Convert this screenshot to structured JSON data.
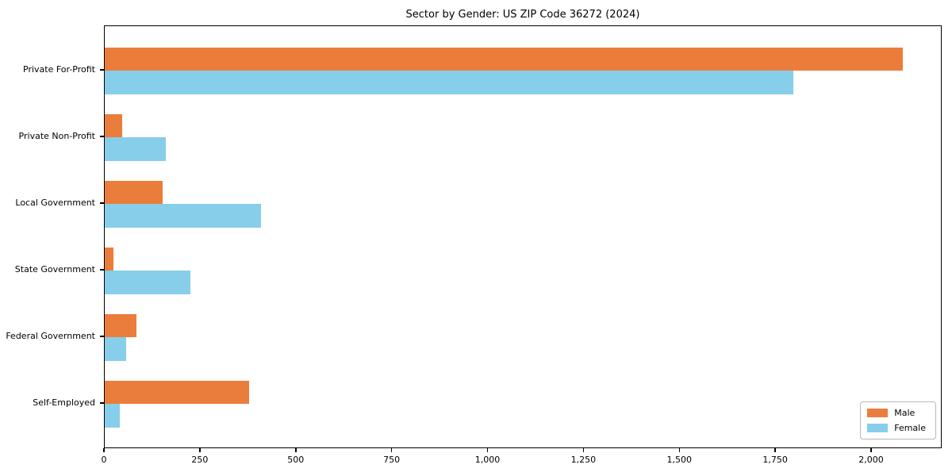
{
  "chart_data": {
    "type": "bar",
    "orientation": "horizontal",
    "title": "Sector by Gender: US ZIP Code 36272 (2024)",
    "categories": [
      "Private For-Profit",
      "Private Non-Profit",
      "Local Government",
      "State Government",
      "Federal Government",
      "Self-Employed"
    ],
    "series": [
      {
        "name": "Male",
        "color": "#EB7D3C",
        "values": [
          2080,
          46,
          150,
          23,
          83,
          377
        ]
      },
      {
        "name": "Female",
        "color": "#87CEEB",
        "values": [
          1795,
          159,
          408,
          224,
          56,
          39
        ]
      }
    ],
    "xlim": [
      0,
      2184
    ],
    "xticks": [
      0,
      250,
      500,
      750,
      1000,
      1250,
      1500,
      1750,
      2000
    ],
    "xtick_labels": [
      "0",
      "250",
      "500",
      "750",
      "1,000",
      "1,250",
      "1,500",
      "1,750",
      "2,000"
    ],
    "legend": {
      "position": "lower right"
    },
    "grid": false,
    "background_color": "#FFFFFF",
    "spine_color": "#000000"
  }
}
